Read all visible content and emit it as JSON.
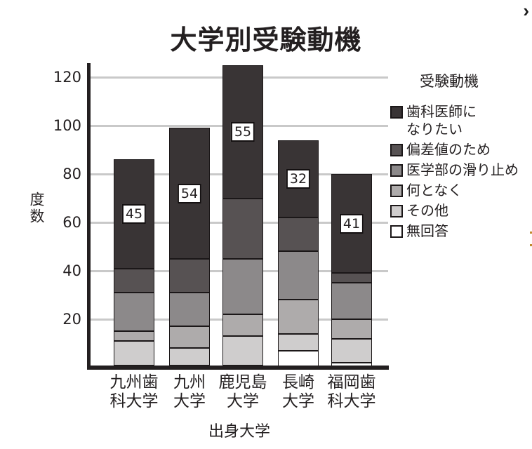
{
  "page": {
    "chevron": "›",
    "edge_marker_color": "#c08a2e"
  },
  "chart": {
    "title": "大学別受験動機",
    "ylabel": "度数",
    "xlabel": "出身大学"
  },
  "legend": {
    "title": "受験動機",
    "items": [
      {
        "label": "歯科医師に\nなりたい",
        "color": "#393435"
      },
      {
        "label": "偏差値のため",
        "color": "#575253"
      },
      {
        "label": "医学部の滑り止め",
        "color": "#8c898a"
      },
      {
        "label": "何となく",
        "color": "#aeabab"
      },
      {
        "label": "その他",
        "color": "#cfcdcd"
      },
      {
        "label": "無回答",
        "color": "#ffffff"
      }
    ]
  },
  "chart_data": {
    "type": "bar",
    "subtype": "stacked",
    "title": "大学別受験動機",
    "xlabel": "出身大学",
    "ylabel": "度数",
    "ylim": [
      0,
      127
    ],
    "yticks": [
      20,
      40,
      60,
      80,
      100,
      120
    ],
    "grid": true,
    "legend_position": "right",
    "legend_title": "受験動機",
    "categories": [
      "九州歯科大学",
      "九州大学",
      "鹿児島大学",
      "長崎大学",
      "福岡歯科大学"
    ],
    "category_tick_lines": [
      "九州歯\n科大学",
      "九州\n大学",
      "鹿児島\n大学",
      "長崎\n大学",
      "福岡歯\n科大学"
    ],
    "series_note": "series listed bottom-to-top of the stack",
    "series": [
      {
        "name": "無回答",
        "color": "#ffffff",
        "values": [
          1,
          1,
          1,
          7,
          2
        ]
      },
      {
        "name": "その他",
        "color": "#cfcdcd",
        "values": [
          10,
          7,
          12,
          7,
          10
        ]
      },
      {
        "name": "何となく",
        "color": "#aeabab",
        "values": [
          4,
          9,
          9,
          14,
          8
        ]
      },
      {
        "name": "医学部の滑り止め",
        "color": "#8c898a",
        "values": [
          16,
          14,
          23,
          20,
          15
        ]
      },
      {
        "name": "偏差値のため",
        "color": "#575253",
        "values": [
          10,
          14,
          25,
          14,
          4
        ]
      },
      {
        "name": "歯科医師になりたい",
        "color": "#393435",
        "values": [
          45,
          54,
          55,
          32,
          41
        ]
      }
    ],
    "bar_labels": {
      "series": "歯科医師になりたい",
      "values": [
        45,
        54,
        55,
        32,
        41
      ]
    },
    "totals": [
      86,
      99,
      125,
      94,
      80
    ]
  }
}
